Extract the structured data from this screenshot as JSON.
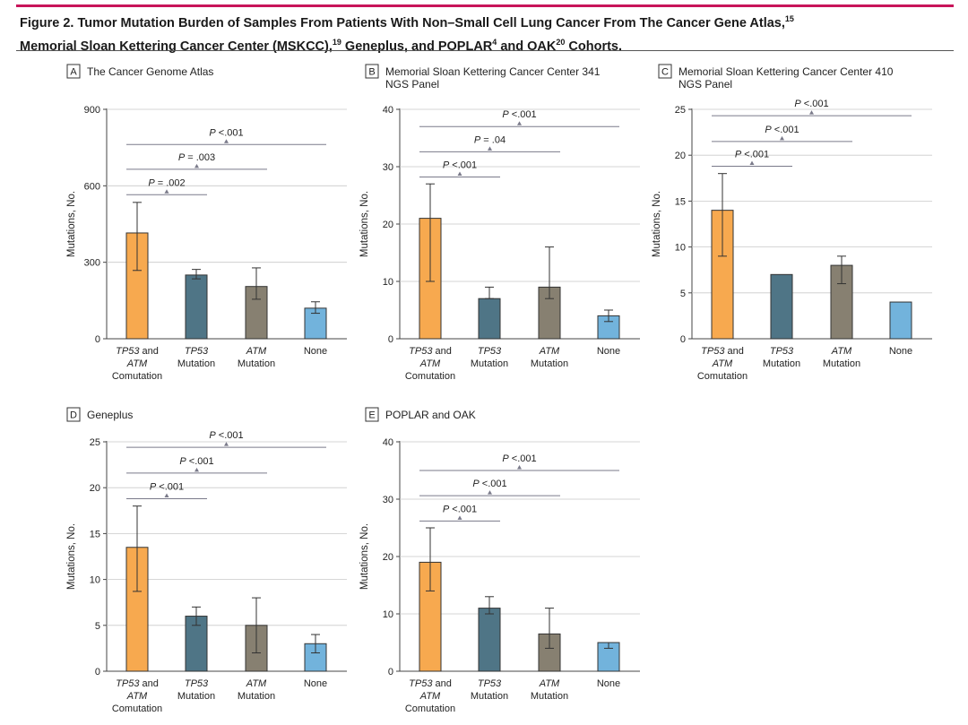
{
  "figure": {
    "title_line1": "Figure 2. Tumor Mutation Burden of Samples From Patients With Non–Small Cell Lung Cancer From The Cancer Gene Atlas,",
    "title_line1_ref": "15",
    "title_line2a": "Memorial Sloan Kettering Cancer Center (MSKCC),",
    "ref_a": "19",
    "title_line2b": " Geneplus, and POPLAR",
    "ref_b": "4",
    "title_line2c": " and OAK",
    "ref_c": "20",
    "title_line2d": " Cohorts."
  },
  "colors": {
    "accent_rule": "#c8145a",
    "bar_fill": [
      "#f7a94f",
      "#4f7586",
      "#878071",
      "#72b3dc"
    ],
    "bar_stroke": "#333333"
  },
  "chart_data": [
    {
      "type": "bar",
      "letter": "A",
      "title": [
        "The Cancer Genome Atlas"
      ],
      "ylabel": "Mutations, No.",
      "ylim": [
        0,
        900
      ],
      "yticks": [
        0,
        300,
        600,
        900
      ],
      "categories": [
        [
          "TP53 and",
          "ATM",
          "Comutation"
        ],
        [
          "TP53",
          "Mutation"
        ],
        [
          "ATM",
          "Mutation"
        ],
        [
          "None"
        ]
      ],
      "italic_lines": [
        [
          true,
          true,
          false
        ],
        [
          true,
          false
        ],
        [
          true,
          false
        ],
        [
          false
        ]
      ],
      "values": [
        415,
        250,
        205,
        120
      ],
      "errors": [
        [
          268,
          535
        ],
        [
          235,
          272
        ],
        [
          155,
          278
        ],
        [
          100,
          145
        ]
      ],
      "comparisons": [
        {
          "from": 0,
          "to": 1,
          "label": "P = .002",
          "level": 565
        },
        {
          "from": 0,
          "to": 2,
          "label": "P = .003",
          "level": 665
        },
        {
          "from": 0,
          "to": 3,
          "label": "P <.001",
          "level": 762
        }
      ]
    },
    {
      "type": "bar",
      "letter": "B",
      "title": [
        "Memorial Sloan Kettering Cancer Center 341",
        "NGS Panel"
      ],
      "ylabel": "Mutations, No.",
      "ylim": [
        0,
        40
      ],
      "yticks": [
        0,
        10,
        20,
        30,
        40
      ],
      "categories": [
        [
          "TP53 and",
          "ATM",
          "Comutation"
        ],
        [
          "TP53",
          "Mutation"
        ],
        [
          "ATM",
          "Mutation"
        ],
        [
          "None"
        ]
      ],
      "italic_lines": [
        [
          true,
          true,
          false
        ],
        [
          true,
          false
        ],
        [
          true,
          false
        ],
        [
          false
        ]
      ],
      "values": [
        21,
        7,
        9,
        4
      ],
      "errors": [
        [
          10,
          27
        ],
        [
          7,
          9
        ],
        [
          7,
          16
        ],
        [
          3,
          5
        ]
      ],
      "comparisons": [
        {
          "from": 0,
          "to": 1,
          "label": "P <.001",
          "level": 28.2
        },
        {
          "from": 0,
          "to": 2,
          "label": "P = .04",
          "level": 32.6
        },
        {
          "from": 0,
          "to": 3,
          "label": "P <.001",
          "level": 37
        }
      ]
    },
    {
      "type": "bar",
      "letter": "C",
      "title": [
        "Memorial Sloan Kettering Cancer Center 410",
        "NGS Panel"
      ],
      "ylabel": "Mutations, No.",
      "ylim": [
        0,
        25
      ],
      "yticks": [
        0,
        5,
        10,
        15,
        20,
        25
      ],
      "categories": [
        [
          "TP53 and",
          "ATM",
          "Comutation"
        ],
        [
          "TP53",
          "Mutation"
        ],
        [
          "ATM",
          "Mutation"
        ],
        [
          "None"
        ]
      ],
      "italic_lines": [
        [
          true,
          true,
          false
        ],
        [
          true,
          false
        ],
        [
          true,
          false
        ],
        [
          false
        ]
      ],
      "values": [
        14,
        7,
        8,
        4
      ],
      "errors": [
        [
          9,
          18
        ],
        null,
        [
          6,
          9
        ],
        null
      ],
      "comparisons": [
        {
          "from": 0,
          "to": 1,
          "label": "P <.001",
          "level": 18.8
        },
        {
          "from": 0,
          "to": 2,
          "label": "P <.001",
          "level": 21.5
        },
        {
          "from": 0,
          "to": 3,
          "label": "P <.001",
          "level": 24.3
        }
      ]
    },
    {
      "type": "bar",
      "letter": "D",
      "title": [
        "Geneplus"
      ],
      "ylabel": "Mutations, No.",
      "ylim": [
        0,
        25
      ],
      "yticks": [
        0,
        5,
        10,
        15,
        20,
        25
      ],
      "categories": [
        [
          "TP53 and",
          "ATM",
          "Comutation"
        ],
        [
          "TP53",
          "Mutation"
        ],
        [
          "ATM",
          "Mutation"
        ],
        [
          "None"
        ]
      ],
      "italic_lines": [
        [
          true,
          true,
          false
        ],
        [
          true,
          false
        ],
        [
          true,
          false
        ],
        [
          false
        ]
      ],
      "values": [
        13.5,
        6,
        5,
        3
      ],
      "errors": [
        [
          8.7,
          18
        ],
        [
          5,
          7
        ],
        [
          2,
          8
        ],
        [
          2,
          4
        ]
      ],
      "comparisons": [
        {
          "from": 0,
          "to": 1,
          "label": "P <.001",
          "level": 18.8
        },
        {
          "from": 0,
          "to": 2,
          "label": "P <.001",
          "level": 21.6
        },
        {
          "from": 0,
          "to": 3,
          "label": "P <.001",
          "level": 24.4
        }
      ]
    },
    {
      "type": "bar",
      "letter": "E",
      "title": [
        "POPLAR and OAK"
      ],
      "ylabel": "Mutations, No.",
      "ylim": [
        0,
        40
      ],
      "yticks": [
        0,
        10,
        20,
        30,
        40
      ],
      "categories": [
        [
          "TP53 and",
          "ATM",
          "Comutation"
        ],
        [
          "TP53",
          "Mutation"
        ],
        [
          "ATM",
          "Mutation"
        ],
        [
          "None"
        ]
      ],
      "italic_lines": [
        [
          true,
          true,
          false
        ],
        [
          true,
          false
        ],
        [
          true,
          false
        ],
        [
          false
        ]
      ],
      "values": [
        19,
        11,
        6.5,
        5
      ],
      "errors": [
        [
          14,
          25
        ],
        [
          10,
          13
        ],
        [
          4,
          11
        ],
        [
          4,
          5
        ]
      ],
      "comparisons": [
        {
          "from": 0,
          "to": 1,
          "label": "P <.001",
          "level": 26.2
        },
        {
          "from": 0,
          "to": 2,
          "label": "P <.001",
          "level": 30.6
        },
        {
          "from": 0,
          "to": 3,
          "label": "P <.001",
          "level": 35
        }
      ]
    }
  ]
}
